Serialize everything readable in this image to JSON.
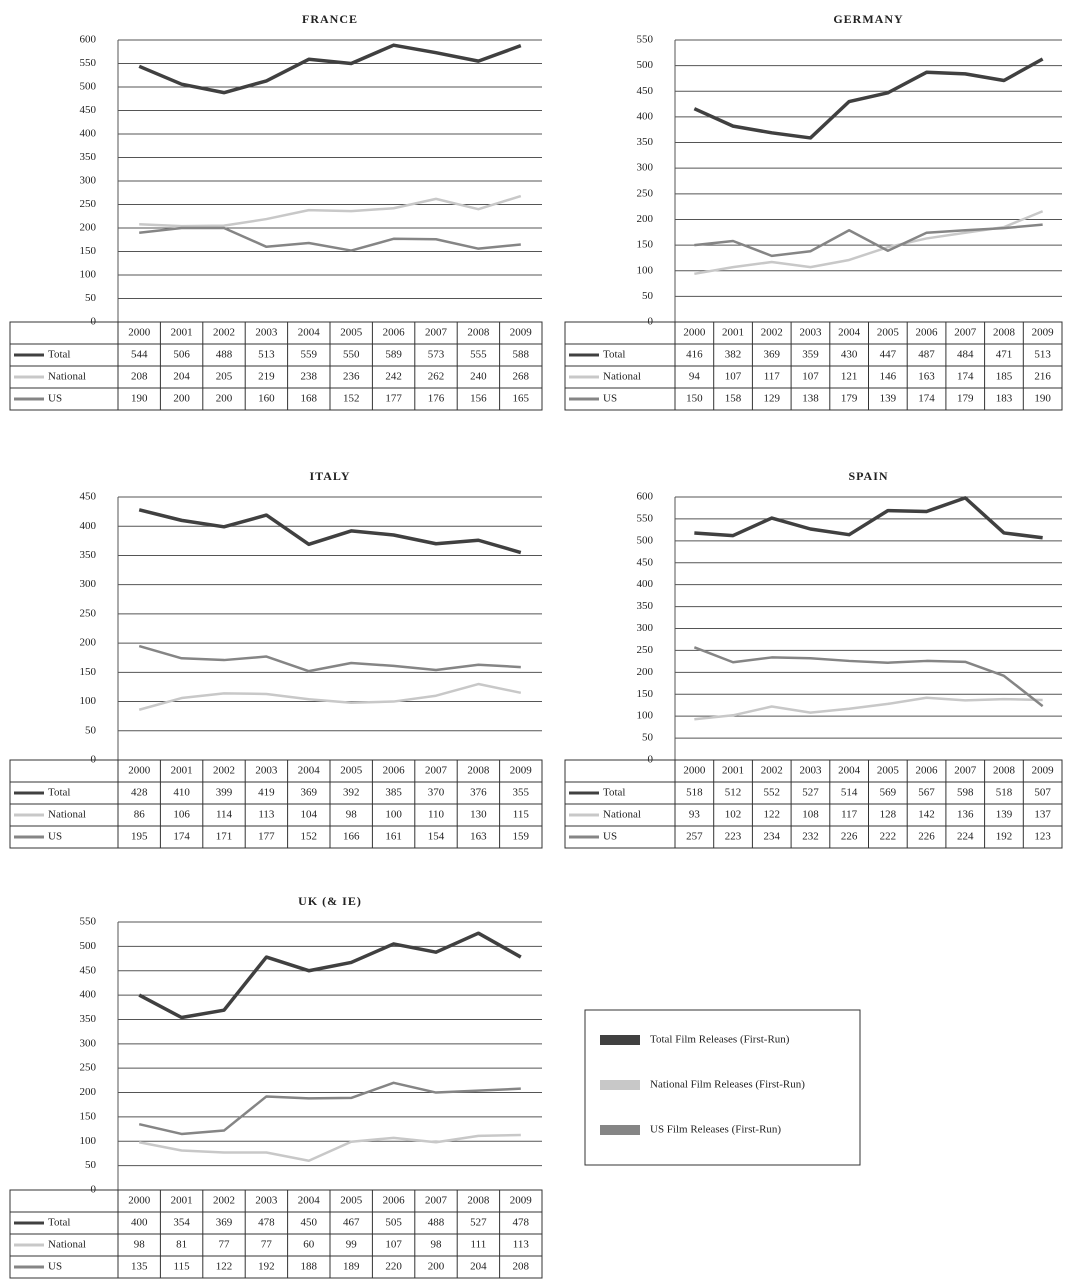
{
  "chart_data": [
    {
      "type": "line",
      "title": "FRANCE",
      "categories": [
        "2000",
        "2001",
        "2002",
        "2003",
        "2004",
        "2005",
        "2006",
        "2007",
        "2008",
        "2009"
      ],
      "series": [
        {
          "name": "Total",
          "color": "#404040",
          "values": [
            544,
            506,
            488,
            513,
            559,
            550,
            589,
            573,
            555,
            588
          ]
        },
        {
          "name": "National",
          "color": "#c8c8c8",
          "values": [
            208,
            204,
            205,
            219,
            238,
            236,
            242,
            262,
            240,
            268
          ]
        },
        {
          "name": "US",
          "color": "#858585",
          "values": [
            190,
            200,
            200,
            160,
            168,
            152,
            177,
            176,
            156,
            165
          ]
        }
      ],
      "ylim": [
        0,
        600
      ],
      "yticks": [
        0,
        50,
        100,
        150,
        200,
        250,
        300,
        350,
        400,
        450,
        500,
        550,
        600
      ],
      "grid": true
    },
    {
      "type": "line",
      "title": "GERMANY",
      "categories": [
        "2000",
        "2001",
        "2002",
        "2003",
        "2004",
        "2005",
        "2006",
        "2007",
        "2008",
        "2009"
      ],
      "series": [
        {
          "name": "Total",
          "color": "#404040",
          "values": [
            416,
            382,
            369,
            359,
            430,
            447,
            487,
            484,
            471,
            513
          ]
        },
        {
          "name": "National",
          "color": "#c8c8c8",
          "values": [
            94,
            107,
            117,
            107,
            121,
            146,
            163,
            174,
            185,
            216
          ]
        },
        {
          "name": "US",
          "color": "#858585",
          "values": [
            150,
            158,
            129,
            138,
            179,
            139,
            174,
            179,
            183,
            190
          ]
        }
      ],
      "ylim": [
        0,
        550
      ],
      "yticks": [
        0,
        50,
        100,
        150,
        200,
        250,
        300,
        350,
        400,
        450,
        500,
        550
      ],
      "grid": true
    },
    {
      "type": "line",
      "title": "ITALY",
      "categories": [
        "2000",
        "2001",
        "2002",
        "2003",
        "2004",
        "2005",
        "2006",
        "2007",
        "2008",
        "2009"
      ],
      "series": [
        {
          "name": "Total",
          "color": "#404040",
          "values": [
            428,
            410,
            399,
            419,
            369,
            392,
            385,
            370,
            376,
            355
          ]
        },
        {
          "name": "National",
          "color": "#c8c8c8",
          "values": [
            86,
            106,
            114,
            113,
            104,
            98,
            100,
            110,
            130,
            115
          ]
        },
        {
          "name": "US",
          "color": "#858585",
          "values": [
            195,
            174,
            171,
            177,
            152,
            166,
            161,
            154,
            163,
            159
          ]
        }
      ],
      "ylim": [
        0,
        450
      ],
      "yticks": [
        0,
        50,
        100,
        150,
        200,
        250,
        300,
        350,
        400,
        450
      ],
      "grid": true
    },
    {
      "type": "line",
      "title": "SPAIN",
      "categories": [
        "2000",
        "2001",
        "2002",
        "2003",
        "2004",
        "2005",
        "2006",
        "2007",
        "2008",
        "2009"
      ],
      "series": [
        {
          "name": "Total",
          "color": "#404040",
          "values": [
            518,
            512,
            552,
            527,
            514,
            569,
            567,
            598,
            518,
            507
          ]
        },
        {
          "name": "National",
          "color": "#c8c8c8",
          "values": [
            93,
            102,
            122,
            108,
            117,
            128,
            142,
            136,
            139,
            137
          ]
        },
        {
          "name": "US",
          "color": "#858585",
          "values": [
            257,
            223,
            234,
            232,
            226,
            222,
            226,
            224,
            192,
            123
          ]
        }
      ],
      "ylim": [
        0,
        600
      ],
      "yticks": [
        0,
        50,
        100,
        150,
        200,
        250,
        300,
        350,
        400,
        450,
        500,
        550,
        600
      ],
      "grid": true
    },
    {
      "type": "line",
      "title": "UK (& IE)",
      "categories": [
        "2000",
        "2001",
        "2002",
        "2003",
        "2004",
        "2005",
        "2006",
        "2007",
        "2008",
        "2009"
      ],
      "series": [
        {
          "name": "Total",
          "color": "#404040",
          "values": [
            400,
            354,
            369,
            478,
            450,
            467,
            505,
            488,
            527,
            478
          ]
        },
        {
          "name": "National",
          "color": "#c8c8c8",
          "values": [
            98,
            81,
            77,
            77,
            60,
            99,
            107,
            98,
            111,
            113
          ]
        },
        {
          "name": "US",
          "color": "#858585",
          "values": [
            135,
            115,
            122,
            192,
            188,
            189,
            220,
            200,
            204,
            208
          ]
        }
      ],
      "ylim": [
        0,
        550
      ],
      "yticks": [
        0,
        50,
        100,
        150,
        200,
        250,
        300,
        350,
        400,
        450,
        500,
        550
      ],
      "grid": true
    }
  ],
  "legend": [
    "Total Film Releases (First-Run)",
    "National Film Releases (First-Run)",
    "US Film Releases (First-Run)"
  ]
}
